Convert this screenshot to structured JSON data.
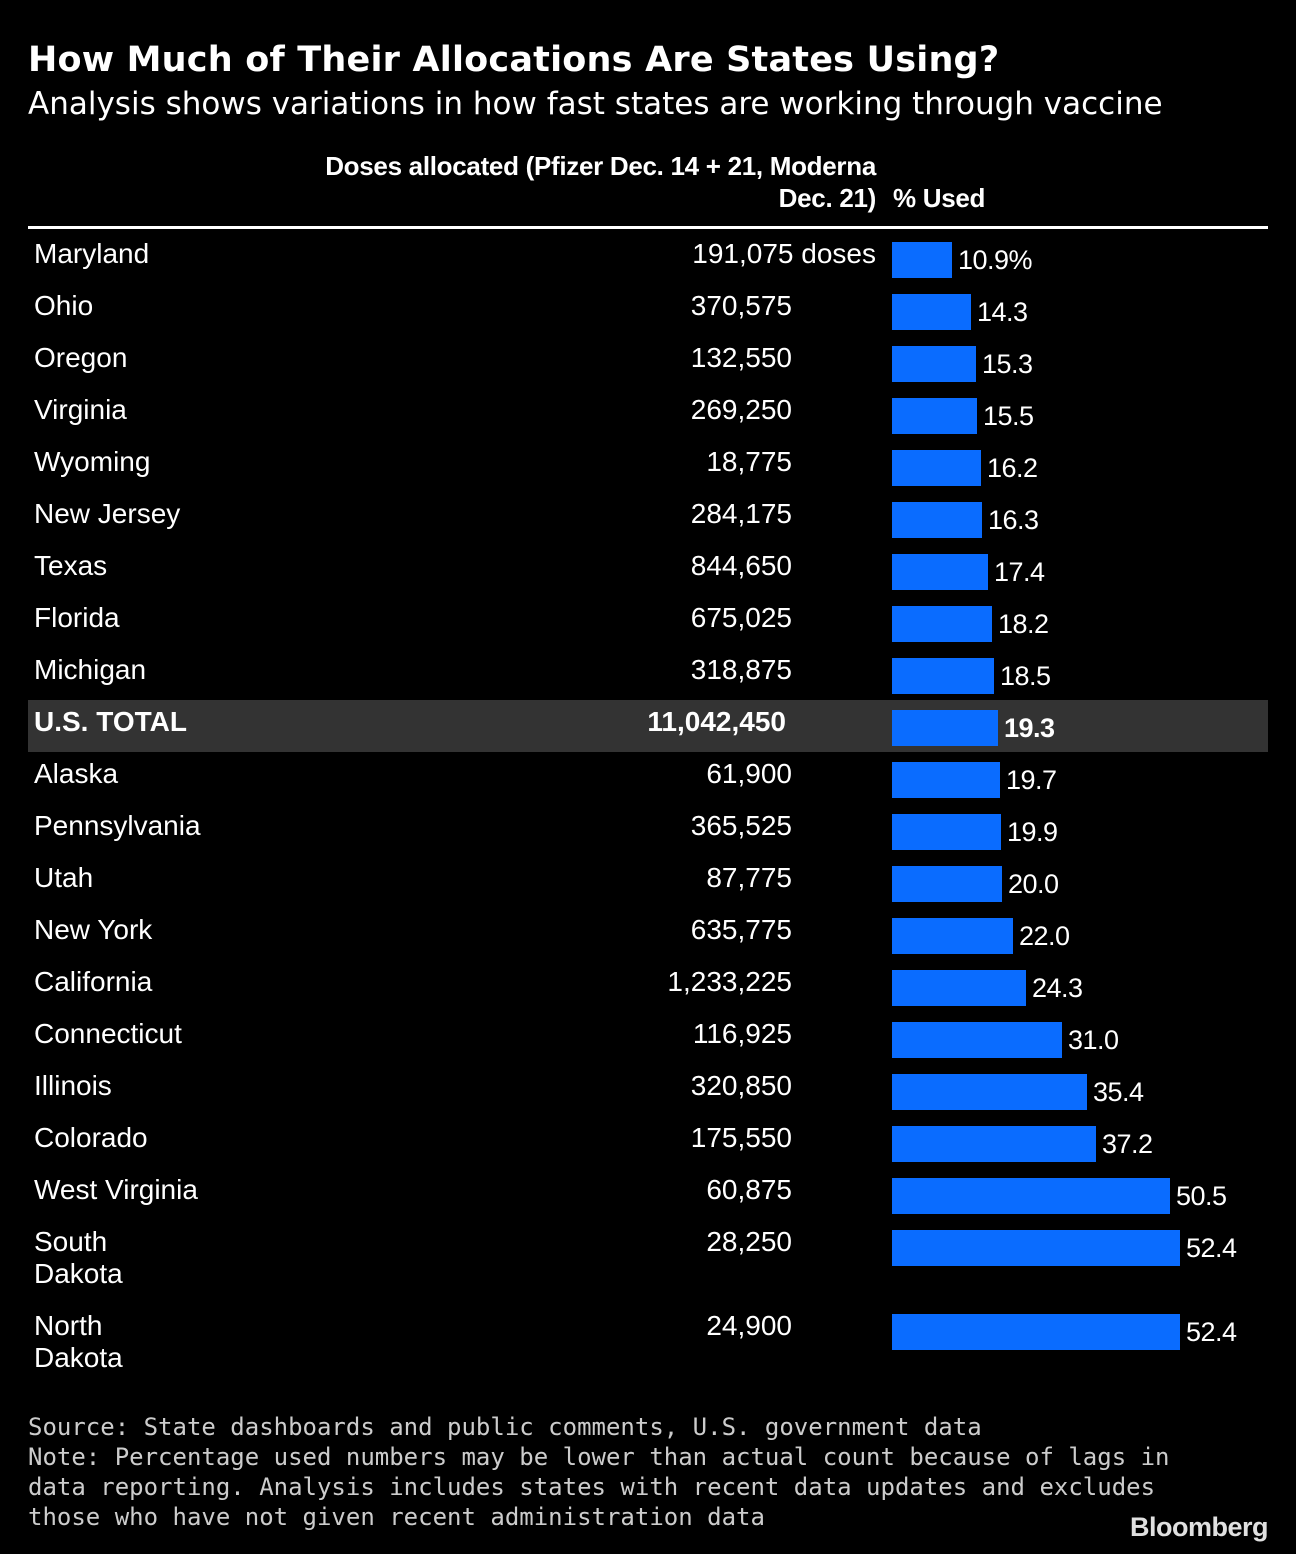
{
  "title": "How Much of Their Allocations Are States Using?",
  "subtitle": "Analysis shows variations in how fast states are working through vaccine",
  "columns": {
    "doses_line1": "Doses allocated (Pfizer Dec. 14 + 21, Moderna",
    "doses_line2": "Dec. 21)",
    "used": "% Used"
  },
  "colors": {
    "bar": "#0a6cff",
    "background": "#000000",
    "highlight_row": "#333333"
  },
  "chart_data": {
    "type": "bar",
    "orientation": "horizontal",
    "xlim": [
      0,
      52.4
    ],
    "rows": [
      {
        "state": "Maryland",
        "doses": "191,075 doses",
        "used": 10.9,
        "label": "10.9%"
      },
      {
        "state": "Ohio",
        "doses": "370,575",
        "used": 14.3,
        "label": "14.3"
      },
      {
        "state": "Oregon",
        "doses": "132,550",
        "used": 15.3,
        "label": "15.3"
      },
      {
        "state": "Virginia",
        "doses": "269,250",
        "used": 15.5,
        "label": "15.5"
      },
      {
        "state": "Wyoming",
        "doses": "18,775",
        "used": 16.2,
        "label": "16.2"
      },
      {
        "state": "New Jersey",
        "doses": "284,175",
        "used": 16.3,
        "label": "16.3"
      },
      {
        "state": "Texas",
        "doses": "844,650",
        "used": 17.4,
        "label": "17.4"
      },
      {
        "state": "Florida",
        "doses": "675,025",
        "used": 18.2,
        "label": "18.2"
      },
      {
        "state": "Michigan",
        "doses": "318,875",
        "used": 18.5,
        "label": "18.5"
      },
      {
        "state": "U.S. TOTAL",
        "doses": "11,042,450",
        "used": 19.3,
        "label": "19.3",
        "total": true
      },
      {
        "state": "Alaska",
        "doses": "61,900",
        "used": 19.7,
        "label": "19.7"
      },
      {
        "state": "Pennsylvania",
        "doses": "365,525",
        "used": 19.9,
        "label": "19.9"
      },
      {
        "state": "Utah",
        "doses": "87,775",
        "used": 20.0,
        "label": "20.0"
      },
      {
        "state": "New York",
        "doses": "635,775",
        "used": 22.0,
        "label": "22.0"
      },
      {
        "state": "California",
        "doses": "1,233,225",
        "used": 24.3,
        "label": "24.3"
      },
      {
        "state": "Connecticut",
        "doses": "116,925",
        "used": 31.0,
        "label": "31.0"
      },
      {
        "state": "Illinois",
        "doses": "320,850",
        "used": 35.4,
        "label": "35.4"
      },
      {
        "state": "Colorado",
        "doses": "175,550",
        "used": 37.2,
        "label": "37.2"
      },
      {
        "state": "West Virginia",
        "doses": "60,875",
        "used": 50.5,
        "label": "50.5"
      },
      {
        "state": "South Dakota",
        "doses": "28,250",
        "used": 52.4,
        "label": "52.4"
      },
      {
        "state": "North Dakota",
        "doses": "24,900",
        "used": 52.4,
        "label": "52.4"
      }
    ]
  },
  "footer": {
    "source": "Source: State dashboards and public comments, U.S. government data",
    "note_lines": [
      "Note: Percentage used numbers may be lower than actual count because of lags in",
      "data reporting. Analysis includes states with recent data updates and excludes",
      "those who have not given recent administration data"
    ],
    "brand": "Bloomberg"
  }
}
